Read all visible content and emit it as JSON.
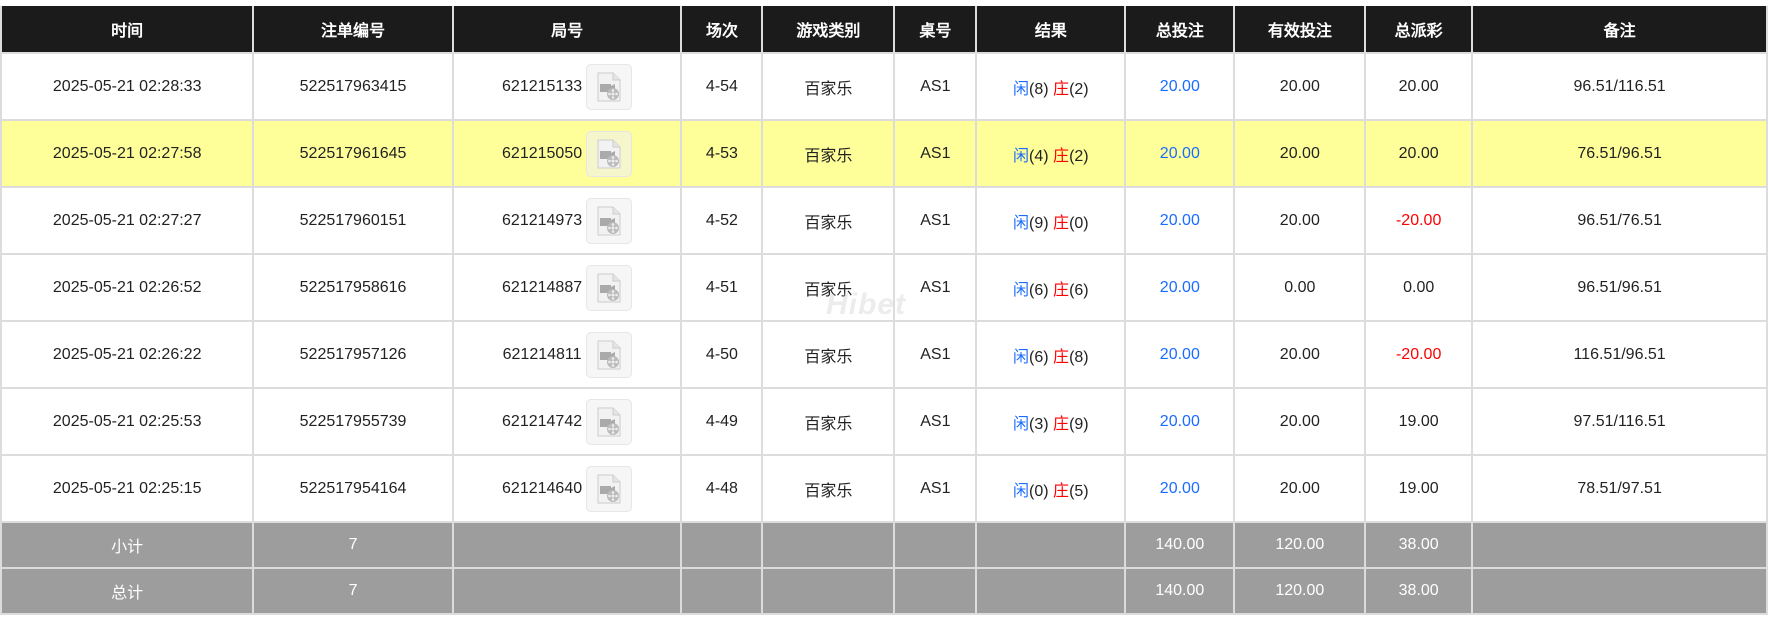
{
  "headers": [
    "时间",
    "注单编号",
    "局号",
    "场次",
    "游戏类别",
    "桌号",
    "结果",
    "总投注",
    "有效投注",
    "总派彩",
    "备注"
  ],
  "colors": {
    "header_bg": "#1b1b1b",
    "highlight_row": "#ffff99",
    "player": "#1a6cff",
    "banker": "#ff0000",
    "negative": "#ff0000",
    "footer_bg": "#9d9d9d"
  },
  "rows": [
    {
      "time": "2025-05-21 02:28:33",
      "bet_id": "522517963415",
      "round": "621215133",
      "shoe": "4-54",
      "game": "百家乐",
      "table": "AS1",
      "player_label": "闲",
      "player": "(8)",
      "banker_label": "庄",
      "banker": "(2)",
      "total_bet": "20.00",
      "valid_bet": "20.00",
      "payout": "20.00",
      "payout_negative": false,
      "note": "96.51/116.51",
      "highlighted": false
    },
    {
      "time": "2025-05-21 02:27:58",
      "bet_id": "522517961645",
      "round": "621215050",
      "shoe": "4-53",
      "game": "百家乐",
      "table": "AS1",
      "player_label": "闲",
      "player": "(4)",
      "banker_label": "庄",
      "banker": "(2)",
      "total_bet": "20.00",
      "valid_bet": "20.00",
      "payout": "20.00",
      "payout_negative": false,
      "note": "76.51/96.51",
      "highlighted": true
    },
    {
      "time": "2025-05-21 02:27:27",
      "bet_id": "522517960151",
      "round": "621214973",
      "shoe": "4-52",
      "game": "百家乐",
      "table": "AS1",
      "player_label": "闲",
      "player": "(9)",
      "banker_label": "庄",
      "banker": "(0)",
      "total_bet": "20.00",
      "valid_bet": "20.00",
      "payout": "-20.00",
      "payout_negative": true,
      "note": "96.51/76.51",
      "highlighted": false
    },
    {
      "time": "2025-05-21 02:26:52",
      "bet_id": "522517958616",
      "round": "621214887",
      "shoe": "4-51",
      "game": "百家乐",
      "table": "AS1",
      "player_label": "闲",
      "player": "(6)",
      "banker_label": "庄",
      "banker": "(6)",
      "total_bet": "20.00",
      "valid_bet": "0.00",
      "payout": "0.00",
      "payout_negative": false,
      "note": "96.51/96.51",
      "highlighted": false
    },
    {
      "time": "2025-05-21 02:26:22",
      "bet_id": "522517957126",
      "round": "621214811",
      "shoe": "4-50",
      "game": "百家乐",
      "table": "AS1",
      "player_label": "闲",
      "player": "(6)",
      "banker_label": "庄",
      "banker": "(8)",
      "total_bet": "20.00",
      "valid_bet": "20.00",
      "payout": "-20.00",
      "payout_negative": true,
      "note": "116.51/96.51",
      "highlighted": false
    },
    {
      "time": "2025-05-21 02:25:53",
      "bet_id": "522517955739",
      "round": "621214742",
      "shoe": "4-49",
      "game": "百家乐",
      "table": "AS1",
      "player_label": "闲",
      "player": "(3)",
      "banker_label": "庄",
      "banker": "(9)",
      "total_bet": "20.00",
      "valid_bet": "20.00",
      "payout": "19.00",
      "payout_negative": false,
      "note": "97.51/116.51",
      "highlighted": false
    },
    {
      "time": "2025-05-21 02:25:15",
      "bet_id": "522517954164",
      "round": "621214640",
      "shoe": "4-48",
      "game": "百家乐",
      "table": "AS1",
      "player_label": "闲",
      "player": "(0)",
      "banker_label": "庄",
      "banker": "(5)",
      "total_bet": "20.00",
      "valid_bet": "20.00",
      "payout": "19.00",
      "payout_negative": false,
      "note": "78.51/97.51",
      "highlighted": false
    }
  ],
  "subtotal": {
    "label": "小计",
    "count": "7",
    "total_bet": "140.00",
    "valid_bet": "120.00",
    "payout": "38.00"
  },
  "total": {
    "label": "总计",
    "count": "7",
    "total_bet": "140.00",
    "valid_bet": "120.00",
    "payout": "38.00"
  },
  "watermark": "Hibet",
  "icons": {
    "replay": "video-file-icon"
  }
}
